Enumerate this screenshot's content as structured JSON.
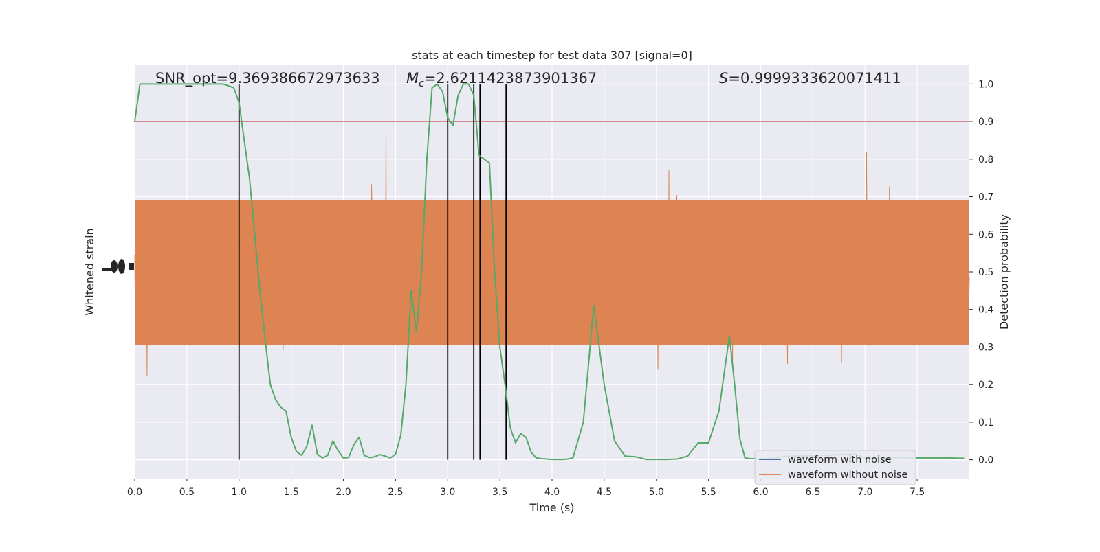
{
  "chart_data": {
    "type": "line",
    "title": "stats at each timestep for test data 307 [signal=0]",
    "xlabel": "Time (s)",
    "ylabel_left": "Whitened strain",
    "ylabel_right": "Detection probability",
    "xlim": [
      0,
      8
    ],
    "ylim_right": [
      -0.05,
      1.05
    ],
    "xticks": [
      "0.0",
      "0.5",
      "1.0",
      "1.5",
      "2.0",
      "2.5",
      "3.0",
      "3.5",
      "4.0",
      "4.5",
      "5.0",
      "5.5",
      "6.0",
      "6.5",
      "7.0",
      "7.5"
    ],
    "yticks_right": [
      "0.0",
      "0.1",
      "0.2",
      "0.3",
      "0.4",
      "0.5",
      "0.6",
      "0.7",
      "0.8",
      "0.9",
      "1.0"
    ],
    "annotations": {
      "snr": "SNR_opt=9.369386672973633",
      "mc_symbol": "M",
      "mc_sub": "c",
      "mc_value": "=2.6211423873901367",
      "s_symbol": "S",
      "s_value": "=0.9999333620071411"
    },
    "threshold": 0.9,
    "vertical_lines": [
      1.0,
      3.0,
      3.25,
      3.31,
      3.56
    ],
    "legend": {
      "position": "lower right",
      "entries": [
        "waveform with noise",
        "waveform without noise"
      ]
    },
    "colors": {
      "with_noise": "#4c72b0",
      "without_noise": "#dd8452",
      "probability": "#55a868",
      "threshold": "#c44e52",
      "background": "#eaeaf2"
    },
    "series": [
      {
        "name": "",
        "x": [
          0.0,
          0.05,
          0.1,
          0.15,
          0.2,
          0.25,
          0.3,
          0.35,
          0.4,
          0.45,
          0.5,
          0.55,
          0.6,
          0.65,
          0.7,
          0.75,
          0.8,
          0.85,
          0.9,
          0.95,
          1.0,
          1.05,
          1.1,
          1.15,
          1.2,
          1.25,
          1.3,
          1.35,
          1.4,
          1.45,
          1.5,
          1.55,
          1.6,
          1.65,
          1.7,
          1.75,
          1.8,
          1.85,
          1.9,
          1.95,
          2.0,
          2.05,
          2.1,
          2.15,
          2.2,
          2.25,
          2.3,
          2.35,
          2.4,
          2.45,
          2.5,
          2.55,
          2.6,
          2.65,
          2.7,
          2.75,
          2.8,
          2.85,
          2.9,
          2.95,
          3.0,
          3.05,
          3.1,
          3.15,
          3.2,
          3.25,
          3.3,
          3.35,
          3.4,
          3.45,
          3.5,
          3.55,
          3.6,
          3.65,
          3.7,
          3.75,
          3.8,
          3.85,
          3.9,
          3.95,
          4.0,
          4.05,
          4.1,
          4.15,
          4.2,
          4.3,
          4.4,
          4.5,
          4.6,
          4.7,
          4.8,
          4.85,
          4.9,
          4.95,
          5.0,
          5.05,
          5.1,
          5.2,
          5.3,
          5.4,
          5.5,
          5.6,
          5.7,
          5.75,
          5.8,
          5.85,
          5.9,
          5.95,
          6.0,
          6.05,
          6.1,
          6.15,
          6.2,
          6.3,
          6.4,
          6.5,
          6.6,
          6.7,
          6.8,
          6.9,
          7.0,
          7.1,
          7.2,
          7.3,
          7.4,
          7.5,
          7.55,
          7.6,
          7.7,
          7.8,
          7.9,
          7.95
        ],
        "y": [
          0.9,
          1.0,
          1.0,
          1.0,
          1.0,
          1.0,
          1.0,
          1.0,
          1.0,
          1.0,
          1.0,
          1.0,
          1.0,
          1.0,
          1.0,
          1.0,
          1.0,
          1.0,
          0.995,
          0.99,
          0.95,
          0.85,
          0.75,
          0.6,
          0.45,
          0.32,
          0.2,
          0.16,
          0.14,
          0.13,
          0.06,
          0.022,
          0.012,
          0.036,
          0.092,
          0.015,
          0.005,
          0.012,
          0.05,
          0.024,
          0.005,
          0.006,
          0.04,
          0.06,
          0.012,
          0.006,
          0.008,
          0.014,
          0.01,
          0.005,
          0.015,
          0.065,
          0.2,
          0.45,
          0.34,
          0.5,
          0.8,
          0.99,
          1.0,
          0.98,
          0.91,
          0.89,
          0.97,
          1.0,
          1.0,
          0.97,
          0.81,
          0.8,
          0.79,
          0.5,
          0.3,
          0.2,
          0.085,
          0.045,
          0.07,
          0.06,
          0.02,
          0.005,
          0.003,
          0.002,
          0.001,
          0.001,
          0.001,
          0.002,
          0.005,
          0.1,
          0.41,
          0.2,
          0.05,
          0.01,
          0.008,
          0.005,
          0.001,
          0.001,
          0.001,
          0.001,
          0.001,
          0.002,
          0.01,
          0.045,
          0.045,
          0.13,
          0.33,
          0.2,
          0.055,
          0.005,
          0.003,
          0.003,
          0.002,
          0.002,
          0.004,
          0.004,
          0.008,
          0.01,
          0.01,
          0.011,
          0.012,
          0.013,
          0.014,
          0.016,
          0.005,
          0.003,
          0.004,
          0.006,
          0.005,
          0.005,
          0.005,
          0.005,
          0.005,
          0.005,
          0.004,
          0.004
        ]
      }
    ]
  }
}
